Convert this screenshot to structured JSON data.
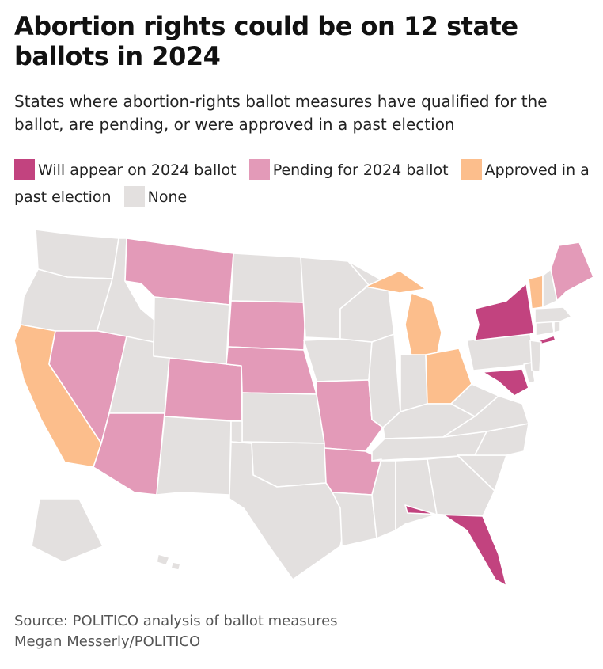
{
  "header": {
    "title": "Abortion rights could be on 12 state ballots in 2024",
    "subtitle": "States where abortion-rights ballot measures have qualified for the ballot, are pending, or were approved in a past election"
  },
  "legend": [
    {
      "label": "Will appear on 2024 ballot",
      "color": "#c2437f"
    },
    {
      "label": "Pending for 2024 ballot",
      "color": "#e39ab8"
    },
    {
      "label": "Approved in a past election",
      "color": "#fcbe8c"
    },
    {
      "label": "None",
      "color": "#e3e0df"
    }
  ],
  "categories": {
    "will_appear": [
      "New York",
      "Maryland",
      "Florida"
    ],
    "pending": [
      "Montana",
      "South Dakota",
      "Nebraska",
      "Colorado",
      "Nevada",
      "Arizona",
      "Missouri",
      "Arkansas",
      "Maine"
    ],
    "approved": [
      "California",
      "Michigan",
      "Ohio",
      "Vermont"
    ]
  },
  "footer": {
    "source": "Source: POLITICO analysis of ballot measures",
    "credit": "Megan Messerly/POLITICO"
  }
}
